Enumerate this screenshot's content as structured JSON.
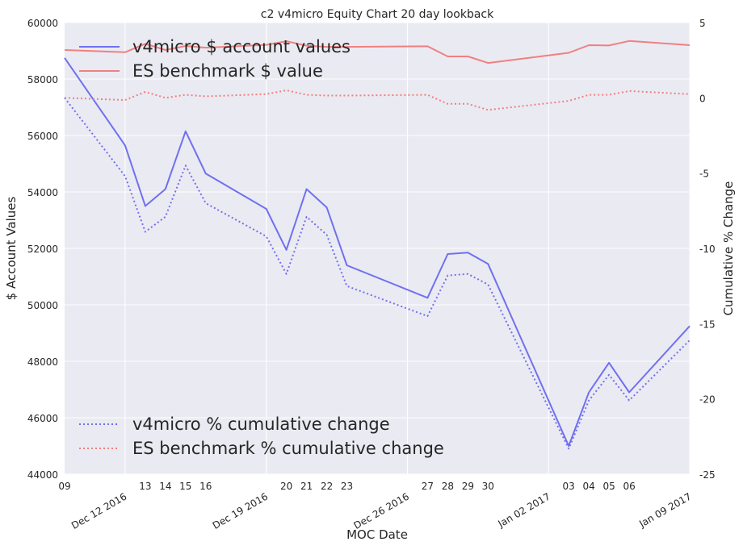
{
  "chart_data": {
    "type": "line",
    "title": "c2 v4micro Equity Chart 20 day lookback",
    "xlabel": "MOC Date",
    "ylabel_left": "$ Account Values",
    "ylabel_right": "Cumulative % Change",
    "ylim_left": [
      44000,
      60000
    ],
    "ylim_right": [
      -25,
      5
    ],
    "yticks_left": [
      "44000",
      "46000",
      "48000",
      "50000",
      "52000",
      "54000",
      "56000",
      "58000",
      "60000"
    ],
    "yticks_right": [
      "-25",
      "-20",
      "-15",
      "-10",
      "-5",
      "0",
      "5"
    ],
    "grid": true,
    "xlim": [
      "2016-12-09",
      "2017-01-09"
    ],
    "x_major_ticks": [
      {
        "date": "2016-12-12",
        "label": "Dec 12 2016"
      },
      {
        "date": "2016-12-19",
        "label": "Dec 19 2016"
      },
      {
        "date": "2016-12-26",
        "label": "Dec 26 2016"
      },
      {
        "date": "2017-01-02",
        "label": "Jan 02 2017"
      },
      {
        "date": "2017-01-09",
        "label": "Jan 09 2017"
      }
    ],
    "x_minor_ticks": [
      {
        "date": "2016-12-09",
        "label": "09"
      },
      {
        "date": "2016-12-13",
        "label": "13"
      },
      {
        "date": "2016-12-14",
        "label": "14"
      },
      {
        "date": "2016-12-15",
        "label": "15"
      },
      {
        "date": "2016-12-16",
        "label": "16"
      },
      {
        "date": "2016-12-20",
        "label": "20"
      },
      {
        "date": "2016-12-21",
        "label": "21"
      },
      {
        "date": "2016-12-22",
        "label": "22"
      },
      {
        "date": "2016-12-23",
        "label": "23"
      },
      {
        "date": "2016-12-27",
        "label": "27"
      },
      {
        "date": "2016-12-28",
        "label": "28"
      },
      {
        "date": "2016-12-29",
        "label": "29"
      },
      {
        "date": "2016-12-30",
        "label": "30"
      },
      {
        "date": "2017-01-03",
        "label": "03"
      },
      {
        "date": "2017-01-04",
        "label": "04"
      },
      {
        "date": "2017-01-05",
        "label": "05"
      },
      {
        "date": "2017-01-06",
        "label": "06"
      }
    ],
    "legend_upper": {
      "placement": "top-left",
      "entries": [
        "v4micro $ account values",
        "ES benchmark $ value"
      ]
    },
    "legend_lower": {
      "placement": "bottom-left",
      "entries": [
        "v4micro % cumulative change",
        "ES benchmark % cumulative change"
      ]
    },
    "series": [
      {
        "name": "v4micro $ account values",
        "axis": "left",
        "style": "solid",
        "color": "#7070f0",
        "x": [
          "2016-12-09",
          "2016-12-12",
          "2016-12-13",
          "2016-12-14",
          "2016-12-15",
          "2016-12-16",
          "2016-12-19",
          "2016-12-20",
          "2016-12-21",
          "2016-12-22",
          "2016-12-23",
          "2016-12-27",
          "2016-12-28",
          "2016-12-29",
          "2016-12-30",
          "2017-01-03",
          "2017-01-04",
          "2017-01-05",
          "2017-01-06",
          "2017-01-09"
        ],
        "y": [
          58750,
          55650,
          53500,
          54100,
          56150,
          54650,
          53400,
          51950,
          54100,
          53450,
          51400,
          50250,
          51800,
          51850,
          51450,
          45000,
          46900,
          47950,
          46900,
          49250
        ]
      },
      {
        "name": "ES benchmark $ value",
        "axis": "left",
        "style": "solid",
        "color": "#f08080",
        "x": [
          "2016-12-09",
          "2016-12-12",
          "2016-12-13",
          "2016-12-14",
          "2016-12-15",
          "2016-12-16",
          "2016-12-19",
          "2016-12-20",
          "2016-12-21",
          "2016-12-22",
          "2016-12-23",
          "2016-12-27",
          "2016-12-28",
          "2016-12-29",
          "2016-12-30",
          "2017-01-03",
          "2017-01-04",
          "2017-01-05",
          "2017-01-06",
          "2017-01-09"
        ],
        "y": [
          59030,
          58950,
          59250,
          59030,
          59170,
          59110,
          59210,
          59340,
          59180,
          59140,
          59140,
          59160,
          58800,
          58800,
          58570,
          58930,
          59200,
          59190,
          59350,
          59200
        ]
      },
      {
        "name": "v4micro % cumulative change",
        "axis": "right",
        "style": "dotted",
        "color": "#7070f0",
        "x": [
          "2016-12-09",
          "2016-12-12",
          "2016-12-13",
          "2016-12-14",
          "2016-12-15",
          "2016-12-16",
          "2016-12-19",
          "2016-12-20",
          "2016-12-21",
          "2016-12-22",
          "2016-12-23",
          "2016-12-27",
          "2016-12-28",
          "2016-12-29",
          "2016-12-30",
          "2017-01-03",
          "2017-01-04",
          "2017-01-05",
          "2017-01-06",
          "2017-01-09"
        ],
        "y": [
          0.0,
          -5.2,
          -8.9,
          -7.9,
          -4.5,
          -7.0,
          -9.2,
          -11.7,
          -7.9,
          -9.1,
          -12.5,
          -14.5,
          -11.8,
          -11.7,
          -12.4,
          -23.3,
          -20.1,
          -18.4,
          -20.1,
          -16.1
        ]
      },
      {
        "name": "ES benchmark % cumulative change",
        "axis": "right",
        "style": "dotted",
        "color": "#f08080",
        "x": [
          "2016-12-09",
          "2016-12-12",
          "2016-12-13",
          "2016-12-14",
          "2016-12-15",
          "2016-12-16",
          "2016-12-19",
          "2016-12-20",
          "2016-12-21",
          "2016-12-22",
          "2016-12-23",
          "2016-12-27",
          "2016-12-28",
          "2016-12-29",
          "2016-12-30",
          "2017-01-03",
          "2017-01-04",
          "2017-01-05",
          "2017-01-06",
          "2017-01-09"
        ],
        "y": [
          0.0,
          -0.15,
          0.4,
          0.0,
          0.2,
          0.1,
          0.25,
          0.5,
          0.2,
          0.15,
          0.15,
          0.2,
          -0.4,
          -0.4,
          -0.8,
          -0.2,
          0.2,
          0.2,
          0.45,
          0.25
        ]
      }
    ]
  }
}
